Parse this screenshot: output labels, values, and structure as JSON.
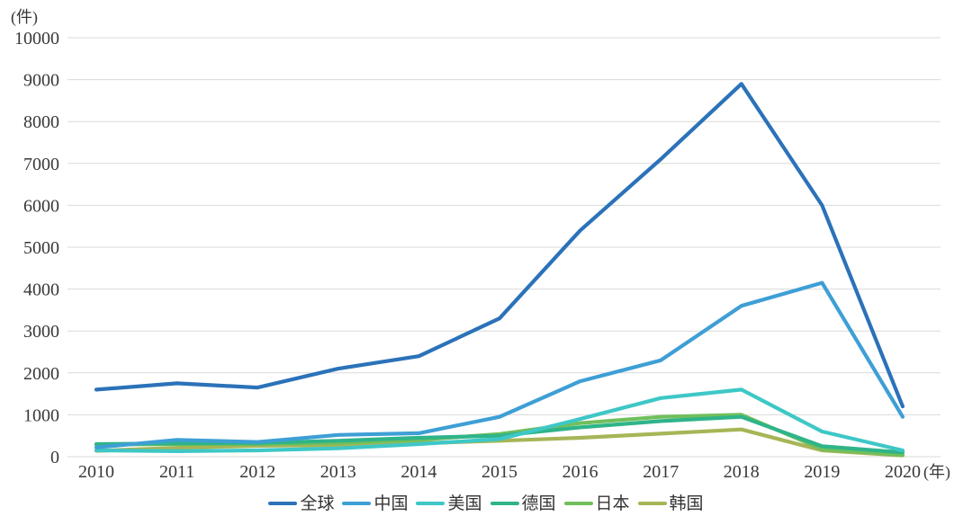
{
  "chart_data": {
    "type": "line",
    "title": "",
    "unit_y": "(件)",
    "unit_x": "(年)",
    "x": [
      "2010",
      "2011",
      "2012",
      "2013",
      "2014",
      "2015",
      "2016",
      "2017",
      "2018",
      "2019",
      "2020"
    ],
    "series": [
      {
        "key": "global",
        "name": "全球",
        "color": "#2B72B9",
        "values": [
          1600,
          1750,
          1650,
          2100,
          2400,
          3300,
          5400,
          7100,
          8900,
          6000,
          1200
        ]
      },
      {
        "key": "china",
        "name": "中国",
        "color": "#3E9FD5",
        "values": [
          220,
          400,
          350,
          520,
          560,
          950,
          1800,
          2300,
          3600,
          4150,
          950
        ]
      },
      {
        "key": "usa",
        "name": "美国",
        "color": "#3EC7C6",
        "values": [
          150,
          130,
          150,
          200,
          300,
          420,
          900,
          1400,
          1600,
          600,
          150
        ]
      },
      {
        "key": "germany",
        "name": "德国",
        "color": "#2FB489",
        "values": [
          300,
          320,
          330,
          380,
          450,
          500,
          700,
          850,
          950,
          250,
          100
        ]
      },
      {
        "key": "japan",
        "name": "日本",
        "color": "#70BF5C",
        "values": [
          290,
          300,
          300,
          330,
          400,
          540,
          800,
          950,
          1000,
          180,
          40
        ]
      },
      {
        "key": "korea",
        "name": "韩国",
        "color": "#A7B556",
        "values": [
          140,
          210,
          260,
          280,
          320,
          380,
          450,
          550,
          650,
          150,
          30
        ]
      }
    ],
    "ylim": [
      0,
      10000
    ],
    "ytick_step": 1000,
    "grid": "horizontal",
    "gridline_color": "#D9D9D9",
    "tick_color": "#383838",
    "legend_position": "bottom"
  }
}
